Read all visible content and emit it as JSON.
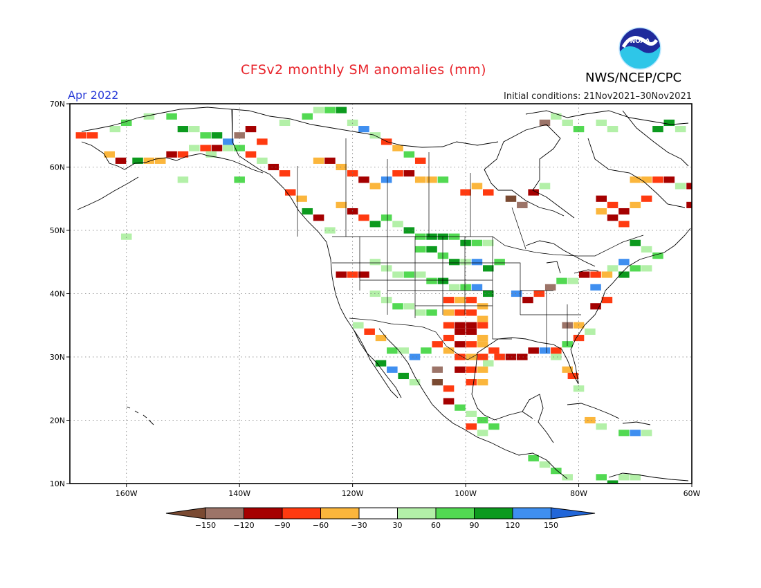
{
  "header": {
    "title": "CFSv2 monthly SM anomalies (mm)",
    "agency": "NWS/NCEP/CPC",
    "logo_text": "NOAA",
    "month": "Apr 2022",
    "initial_conditions": "Initial conditions: 21Nov2021–30Nov2021"
  },
  "map": {
    "lat_labels": [
      "70N",
      "60N",
      "50N",
      "40N",
      "30N",
      "20N",
      "10N"
    ],
    "lon_labels": [
      "160W",
      "140W",
      "120W",
      "100W",
      "80W",
      "60W"
    ],
    "lat_values": [
      70,
      60,
      50,
      40,
      30,
      20,
      10
    ],
    "lon_values": [
      -160,
      -140,
      -120,
      -100,
      -80,
      -60
    ],
    "extent": {
      "lon_min": -170,
      "lon_max": -60,
      "lat_min": 10,
      "lat_max": 70
    }
  },
  "colorbar": {
    "labels": [
      "−150",
      "−120",
      "−90",
      "−60",
      "−30",
      "30",
      "60",
      "90",
      "120",
      "150"
    ],
    "bins": [
      {
        "range": "< -150",
        "color": "#7a4a32"
      },
      {
        "range": "-150 to -120",
        "color": "#9c7468"
      },
      {
        "range": "-120 to -90",
        "color": "#a50000"
      },
      {
        "range": "-90 to -60",
        "color": "#ff3a10"
      },
      {
        "range": "-60 to -30",
        "color": "#fbb63c"
      },
      {
        "range": "-30 to 30",
        "color": "#ffffff"
      },
      {
        "range": "30 to 60",
        "color": "#b3f0a8"
      },
      {
        "range": "60 to 90",
        "color": "#52d952"
      },
      {
        "range": "90 to 120",
        "color": "#0c9a1e"
      },
      {
        "range": "120 to 150",
        "color": "#3f8ff0"
      },
      {
        "range": "> 150",
        "color": "#2166d9"
      }
    ]
  },
  "anomaly_cells": [
    [
      -168,
      65,
      -2
    ],
    [
      -166,
      65,
      -2
    ],
    [
      -163,
      62,
      -1
    ],
    [
      -161,
      61,
      -3
    ],
    [
      -158,
      61,
      3
    ],
    [
      -156,
      61,
      -1
    ],
    [
      -154,
      61,
      -1
    ],
    [
      -152,
      62,
      -3
    ],
    [
      -150,
      62,
      -2
    ],
    [
      -148,
      63,
      1
    ],
    [
      -146,
      63,
      -2
    ],
    [
      -144,
      63,
      -3
    ],
    [
      -142,
      63,
      1
    ],
    [
      -140,
      63,
      2
    ],
    [
      -138,
      62,
      -2
    ],
    [
      -136,
      61,
      1
    ],
    [
      -134,
      60,
      -3
    ],
    [
      -132,
      59,
      -2
    ],
    [
      -162,
      66,
      1
    ],
    [
      -160,
      67,
      2
    ],
    [
      -156,
      68,
      1
    ],
    [
      -152,
      68,
      2
    ],
    [
      -150,
      66,
      3
    ],
    [
      -148,
      66,
      1
    ],
    [
      -146,
      65,
      2
    ],
    [
      -144,
      65,
      3
    ],
    [
      -142,
      64,
      4
    ],
    [
      -140,
      65,
      -4
    ],
    [
      -138,
      66,
      -3
    ],
    [
      -136,
      64,
      -2
    ],
    [
      -132,
      67,
      1
    ],
    [
      -128,
      68,
      2
    ],
    [
      -126,
      69,
      1
    ],
    [
      -124,
      69,
      2
    ],
    [
      -122,
      69,
      3
    ],
    [
      -120,
      67,
      1
    ],
    [
      -118,
      66,
      4
    ],
    [
      -116,
      65,
      1
    ],
    [
      -114,
      64,
      -2
    ],
    [
      -112,
      63,
      -1
    ],
    [
      -110,
      62,
      2
    ],
    [
      -108,
      61,
      -2
    ],
    [
      -126,
      61,
      -1
    ],
    [
      -124,
      61,
      -3
    ],
    [
      -122,
      60,
      -1
    ],
    [
      -120,
      59,
      -2
    ],
    [
      -118,
      58,
      -3
    ],
    [
      -116,
      57,
      -1
    ],
    [
      -114,
      58,
      4
    ],
    [
      -112,
      59,
      -2
    ],
    [
      -110,
      59,
      -3
    ],
    [
      -108,
      58,
      -1
    ],
    [
      -106,
      58,
      -1
    ],
    [
      -104,
      58,
      2
    ],
    [
      -122,
      54,
      -1
    ],
    [
      -120,
      53,
      -3
    ],
    [
      -118,
      52,
      -2
    ],
    [
      -116,
      51,
      3
    ],
    [
      -114,
      52,
      2
    ],
    [
      -112,
      51,
      1
    ],
    [
      -110,
      50,
      3
    ],
    [
      -108,
      49,
      2
    ],
    [
      -106,
      49,
      3
    ],
    [
      -104,
      49,
      3
    ],
    [
      -102,
      49,
      2
    ],
    [
      -100,
      48,
      3
    ],
    [
      -98,
      48,
      2
    ],
    [
      -96,
      48,
      1
    ],
    [
      -108,
      47,
      2
    ],
    [
      -106,
      47,
      3
    ],
    [
      -104,
      46,
      2
    ],
    [
      -102,
      45,
      3
    ],
    [
      -100,
      45,
      1
    ],
    [
      -98,
      45,
      4
    ],
    [
      -96,
      44,
      3
    ],
    [
      -94,
      45,
      2
    ],
    [
      -116,
      45,
      1
    ],
    [
      -114,
      44,
      1
    ],
    [
      -112,
      43,
      1
    ],
    [
      -110,
      43,
      2
    ],
    [
      -108,
      43,
      1
    ],
    [
      -106,
      42,
      2
    ],
    [
      -104,
      42,
      3
    ],
    [
      -102,
      41,
      1
    ],
    [
      -100,
      41,
      2
    ],
    [
      -98,
      41,
      4
    ],
    [
      -96,
      40,
      3
    ],
    [
      -122,
      43,
      -3
    ],
    [
      -120,
      43,
      -2
    ],
    [
      -118,
      43,
      -3
    ],
    [
      -116,
      40,
      1
    ],
    [
      -114,
      39,
      1
    ],
    [
      -112,
      38,
      2
    ],
    [
      -110,
      38,
      1
    ],
    [
      -108,
      37,
      1
    ],
    [
      -106,
      37,
      2
    ],
    [
      -103,
      39,
      -2
    ],
    [
      -101,
      39,
      -1
    ],
    [
      -99,
      39,
      -2
    ],
    [
      -97,
      38,
      -1
    ],
    [
      -103,
      37,
      -1
    ],
    [
      -101,
      37,
      -2
    ],
    [
      -99,
      37,
      -2
    ],
    [
      -97,
      36,
      -1
    ],
    [
      -103,
      35,
      -2
    ],
    [
      -101,
      35,
      -3
    ],
    [
      -99,
      35,
      -3
    ],
    [
      -97,
      35,
      -2
    ],
    [
      -101,
      34,
      -3
    ],
    [
      -99,
      34,
      -3
    ],
    [
      -97,
      33,
      -1
    ],
    [
      -103,
      33,
      -2
    ],
    [
      -101,
      32,
      -3
    ],
    [
      -99,
      32,
      -2
    ],
    [
      -97,
      32,
      -1
    ],
    [
      -95,
      31,
      -2
    ],
    [
      -103,
      31,
      -1
    ],
    [
      -101,
      30,
      -2
    ],
    [
      -99,
      30,
      -1
    ],
    [
      -97,
      30,
      -2
    ],
    [
      -101,
      28,
      -3
    ],
    [
      -99,
      28,
      -2
    ],
    [
      -97,
      28,
      -1
    ],
    [
      -99,
      26,
      -2
    ],
    [
      -97,
      26,
      -1
    ],
    [
      -105,
      32,
      -2
    ],
    [
      -107,
      31,
      2
    ],
    [
      -109,
      30,
      4
    ],
    [
      -111,
      31,
      1
    ],
    [
      -113,
      31,
      2
    ],
    [
      -115,
      33,
      -1
    ],
    [
      -117,
      34,
      -2
    ],
    [
      -119,
      35,
      1
    ],
    [
      -115,
      29,
      3
    ],
    [
      -113,
      28,
      4
    ],
    [
      -111,
      27,
      3
    ],
    [
      -109,
      26,
      1
    ],
    [
      -105,
      28,
      -4
    ],
    [
      -105,
      26,
      -5
    ],
    [
      -103,
      25,
      -2
    ],
    [
      -103,
      23,
      -3
    ],
    [
      -101,
      22,
      2
    ],
    [
      -99,
      21,
      1
    ],
    [
      -97,
      20,
      2
    ],
    [
      -95,
      19,
      2
    ],
    [
      -99,
      19,
      -2
    ],
    [
      -97,
      18,
      1
    ],
    [
      -91,
      40,
      4
    ],
    [
      -89,
      39,
      -3
    ],
    [
      -87,
      40,
      -2
    ],
    [
      -85,
      41,
      -4
    ],
    [
      -83,
      42,
      2
    ],
    [
      -81,
      42,
      1
    ],
    [
      -79,
      43,
      -3
    ],
    [
      -77,
      43,
      -2
    ],
    [
      -75,
      43,
      -1
    ],
    [
      -77,
      41,
      4
    ],
    [
      -75,
      39,
      -2
    ],
    [
      -77,
      38,
      -3
    ],
    [
      -88,
      31,
      -3
    ],
    [
      -86,
      31,
      4
    ],
    [
      -84,
      31,
      -2
    ],
    [
      -82,
      32,
      2
    ],
    [
      -80,
      33,
      -2
    ],
    [
      -78,
      34,
      1
    ],
    [
      -82,
      35,
      -4
    ],
    [
      -80,
      35,
      -1
    ],
    [
      -84,
      30,
      1
    ],
    [
      -82,
      28,
      -1
    ],
    [
      -81,
      27,
      -2
    ],
    [
      -80,
      25,
      1
    ],
    [
      -92,
      30,
      -3
    ],
    [
      -94,
      30,
      -2
    ],
    [
      -96,
      29,
      1
    ],
    [
      -90,
      30,
      -3
    ],
    [
      -70,
      48,
      3
    ],
    [
      -68,
      47,
      1
    ],
    [
      -66,
      46,
      2
    ],
    [
      -72,
      45,
      4
    ],
    [
      -74,
      44,
      1
    ],
    [
      -72,
      43,
      3
    ],
    [
      -70,
      44,
      2
    ],
    [
      -68,
      44,
      1
    ],
    [
      -76,
      55,
      -3
    ],
    [
      -74,
      54,
      -2
    ],
    [
      -72,
      53,
      -3
    ],
    [
      -70,
      54,
      -1
    ],
    [
      -68,
      55,
      -2
    ],
    [
      -76,
      53,
      -1
    ],
    [
      -74,
      52,
      -3
    ],
    [
      -72,
      51,
      -2
    ],
    [
      -70,
      58,
      -1
    ],
    [
      -68,
      58,
      -1
    ],
    [
      -66,
      58,
      -2
    ],
    [
      -64,
      58,
      -3
    ],
    [
      -62,
      57,
      1
    ],
    [
      -60,
      57,
      -3
    ],
    [
      -60,
      54,
      -3
    ],
    [
      -92,
      55,
      -5
    ],
    [
      -90,
      54,
      -4
    ],
    [
      -88,
      56,
      -3
    ],
    [
      -86,
      57,
      1
    ],
    [
      -96,
      56,
      -2
    ],
    [
      -98,
      57,
      -1
    ],
    [
      -100,
      56,
      -2
    ],
    [
      -86,
      67,
      -4
    ],
    [
      -84,
      68,
      1
    ],
    [
      -82,
      67,
      1
    ],
    [
      -80,
      66,
      2
    ],
    [
      -76,
      67,
      1
    ],
    [
      -74,
      66,
      1
    ],
    [
      -66,
      66,
      3
    ],
    [
      -64,
      67,
      3
    ],
    [
      -62,
      66,
      1
    ],
    [
      -78,
      20,
      -1
    ],
    [
      -76,
      19,
      1
    ],
    [
      -72,
      18,
      2
    ],
    [
      -70,
      18,
      4
    ],
    [
      -68,
      18,
      1
    ],
    [
      -88,
      14,
      2
    ],
    [
      -86,
      13,
      1
    ],
    [
      -84,
      12,
      2
    ],
    [
      -82,
      11,
      1
    ],
    [
      -76,
      11,
      2
    ],
    [
      -74,
      10,
      3
    ],
    [
      -72,
      11,
      1
    ],
    [
      -70,
      11,
      1
    ],
    [
      -160,
      49,
      1
    ],
    [
      -140,
      58,
      2
    ],
    [
      -145,
      62,
      1
    ],
    [
      -150,
      58,
      1
    ],
    [
      -131,
      56,
      -2
    ],
    [
      -129,
      55,
      -1
    ],
    [
      -128,
      53,
      3
    ],
    [
      -126,
      52,
      -3
    ],
    [
      -124,
      50,
      1
    ]
  ]
}
